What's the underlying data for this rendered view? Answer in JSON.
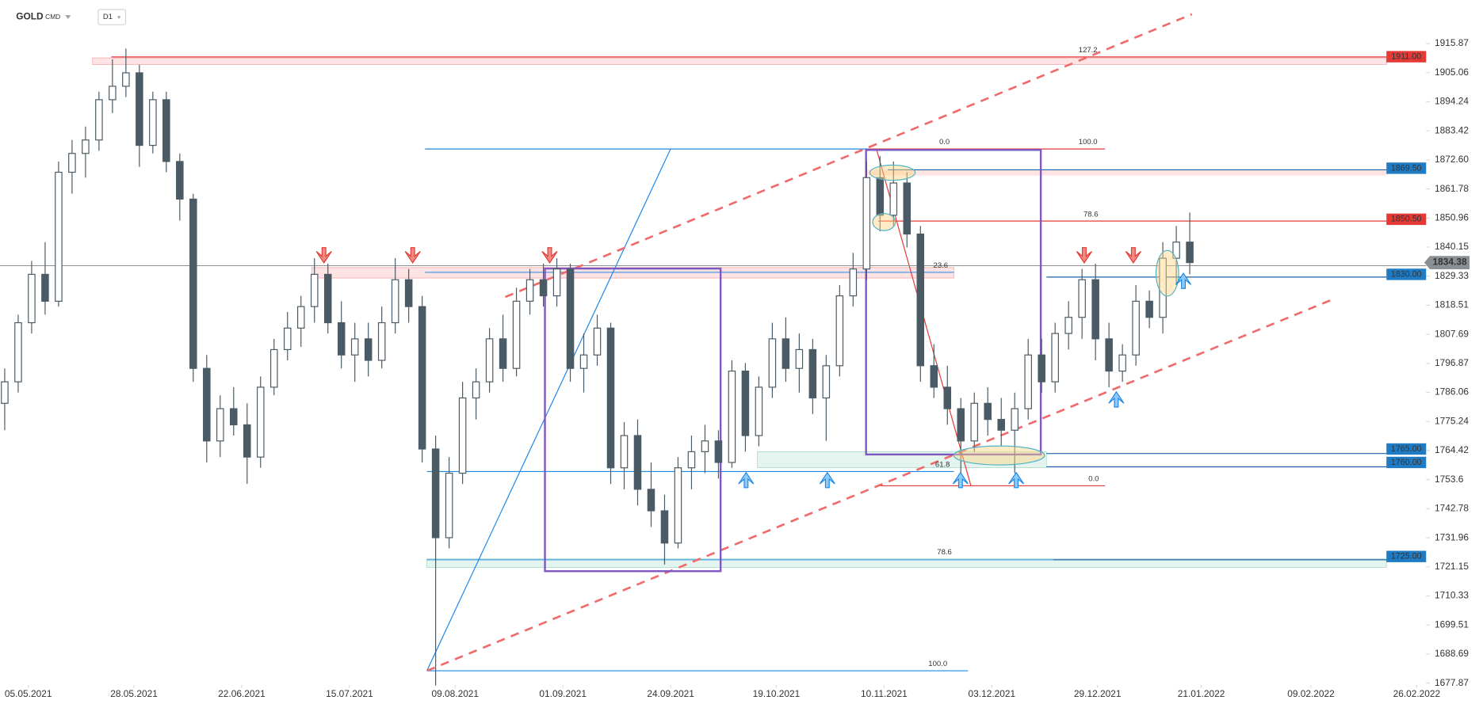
{
  "header": {
    "symbol": "GOLD",
    "market": "CMD",
    "interval": "D1"
  },
  "chart_data": {
    "type": "candlestick",
    "x": [
      0,
      2,
      4,
      6,
      8,
      10,
      12,
      14,
      16,
      18,
      20,
      22,
      24,
      26,
      28,
      30,
      32,
      34,
      36,
      38,
      40,
      42,
      44,
      46,
      48,
      50,
      52,
      54,
      56,
      58,
      60,
      62,
      64,
      66,
      68,
      70,
      72,
      74,
      76,
      78,
      80,
      82,
      84,
      86,
      88,
      90,
      92,
      94,
      96,
      98,
      100,
      102,
      104,
      106,
      108,
      110,
      112,
      114,
      116,
      118,
      120,
      122,
      124,
      126,
      128,
      130,
      132,
      134,
      136,
      138,
      140,
      142,
      144,
      146,
      148,
      150,
      152,
      154,
      156,
      158,
      160,
      162,
      164,
      166,
      168,
      170,
      172,
      174,
      176
    ],
    "open": [
      1782,
      1790,
      1812,
      1830,
      1820,
      1868,
      1875,
      1880,
      1895,
      1900,
      1905,
      1878,
      1895,
      1872,
      1858,
      1795,
      1768,
      1780,
      1774,
      1762,
      1788,
      1802,
      1810,
      1818,
      1830,
      1812,
      1800,
      1806,
      1798,
      1812,
      1828,
      1818,
      1765,
      1732,
      1756,
      1784,
      1790,
      1806,
      1795,
      1820,
      1828,
      1822,
      1832,
      1795,
      1800,
      1810,
      1758,
      1770,
      1750,
      1742,
      1730,
      1758,
      1764,
      1768,
      1760,
      1794,
      1770,
      1788,
      1806,
      1795,
      1802,
      1784,
      1796,
      1822,
      1832,
      1866,
      1852,
      1864,
      1845,
      1796,
      1788,
      1780,
      1768,
      1782,
      1776,
      1772,
      1780,
      1800,
      1790,
      1808,
      1814,
      1828,
      1806,
      1794,
      1800,
      1820,
      1814,
      1836,
      1842
    ],
    "high": [
      1795,
      1815,
      1835,
      1842,
      1872,
      1880,
      1885,
      1898,
      1910,
      1914,
      1908,
      1898,
      1898,
      1875,
      1860,
      1800,
      1785,
      1788,
      1782,
      1792,
      1806,
      1816,
      1822,
      1836,
      1834,
      1820,
      1812,
      1812,
      1818,
      1836,
      1832,
      1822,
      1770,
      1762,
      1790,
      1795,
      1810,
      1815,
      1825,
      1832,
      1834,
      1836,
      1834,
      1808,
      1815,
      1812,
      1775,
      1776,
      1760,
      1748,
      1762,
      1770,
      1774,
      1772,
      1798,
      1797,
      1792,
      1812,
      1814,
      1808,
      1806,
      1800,
      1826,
      1838,
      1872,
      1874,
      1872,
      1868,
      1848,
      1804,
      1796,
      1784,
      1786,
      1788,
      1784,
      1786,
      1806,
      1806,
      1812,
      1820,
      1832,
      1834,
      1812,
      1804,
      1826,
      1824,
      1842,
      1848,
      1853
    ],
    "low": [
      1772,
      1786,
      1808,
      1815,
      1818,
      1860,
      1866,
      1876,
      1890,
      1896,
      1870,
      1875,
      1868,
      1850,
      1790,
      1760,
      1762,
      1770,
      1752,
      1758,
      1785,
      1798,
      1803,
      1812,
      1808,
      1795,
      1790,
      1792,
      1795,
      1808,
      1812,
      1760,
      1677,
      1728,
      1752,
      1776,
      1786,
      1790,
      1792,
      1815,
      1818,
      1818,
      1790,
      1786,
      1796,
      1752,
      1750,
      1744,
      1736,
      1722,
      1728,
      1750,
      1756,
      1754,
      1758,
      1764,
      1766,
      1784,
      1790,
      1786,
      1778,
      1768,
      1792,
      1818,
      1828,
      1846,
      1848,
      1840,
      1790,
      1784,
      1774,
      1756,
      1764,
      1770,
      1766,
      1756,
      1776,
      1786,
      1786,
      1802,
      1806,
      1798,
      1788,
      1790,
      1796,
      1810,
      1808,
      1826,
      1830
    ],
    "close": [
      1790,
      1812,
      1830,
      1820,
      1868,
      1875,
      1880,
      1895,
      1900,
      1905,
      1878,
      1895,
      1872,
      1858,
      1795,
      1768,
      1780,
      1774,
      1762,
      1788,
      1802,
      1810,
      1818,
      1830,
      1812,
      1800,
      1806,
      1798,
      1812,
      1828,
      1818,
      1765,
      1732,
      1756,
      1784,
      1790,
      1806,
      1795,
      1820,
      1828,
      1822,
      1832,
      1795,
      1800,
      1810,
      1758,
      1770,
      1750,
      1742,
      1730,
      1758,
      1764,
      1768,
      1760,
      1794,
      1770,
      1788,
      1806,
      1795,
      1802,
      1784,
      1796,
      1822,
      1832,
      1866,
      1852,
      1864,
      1845,
      1796,
      1788,
      1780,
      1768,
      1782,
      1776,
      1772,
      1780,
      1800,
      1790,
      1808,
      1814,
      1828,
      1806,
      1794,
      1800,
      1820,
      1814,
      1836,
      1842,
      1834.38
    ],
    "up_color": "#ffffff",
    "down_color": "#4b5b65",
    "xlim": [
      -0.7,
      211.1
    ],
    "xticks": [
      {
        "value": 3.5,
        "label": "05.05.2021"
      },
      {
        "value": 19.2,
        "label": "28.05.2021"
      },
      {
        "value": 35.2,
        "label": "22.06.2021"
      },
      {
        "value": 51.2,
        "label": "15.07.2021"
      },
      {
        "value": 66.9,
        "label": "09.08.2021"
      },
      {
        "value": 82.9,
        "label": "01.09.2021"
      },
      {
        "value": 98.9,
        "label": "24.09.2021"
      },
      {
        "value": 114.6,
        "label": "19.10.2021"
      },
      {
        "value": 130.6,
        "label": "10.11.2021"
      },
      {
        "value": 146.6,
        "label": "03.12.2021"
      },
      {
        "value": 162.3,
        "label": "29.12.2021"
      },
      {
        "value": 177.7,
        "label": "21.01.2022"
      },
      {
        "value": 194,
        "label": "09.02.2022"
      },
      {
        "value": 209.7,
        "label": "26.02.2022"
      }
    ],
    "ylim": [
      1670.1,
      1932.1
    ],
    "yticks": [
      1915.87,
      1905.06,
      1894.24,
      1883.42,
      {
        "value": 1872.6,
        "label": "1872.60"
      },
      1861.78,
      1850.96,
      1840.15,
      1829.33,
      1818.51,
      1807.69,
      1796.87,
      1786.06,
      1775.24,
      1764.42,
      1753.6,
      1742.78,
      1731.96,
      1721.15,
      1710.33,
      1699.51,
      1688.69,
      1677.87
    ],
    "grid": false,
    "levels": [
      {
        "value": 1911,
        "label": "1911.00",
        "color": "#e53935"
      },
      {
        "value": 1869.5,
        "label": "1869.50",
        "color": "#1e7bc4"
      },
      {
        "value": 1850.5,
        "label": "1850.50",
        "color": "#e53935"
      },
      {
        "value": 1830,
        "label": "1830.00",
        "color": "#1e7bc4"
      },
      {
        "value": 1765,
        "label": "1765.00",
        "color": "#1e7bc4"
      },
      {
        "value": 1760,
        "label": "1760.00",
        "color": "#1e7bc4"
      },
      {
        "value": 1725,
        "label": "1725.00",
        "color": "#1e7bc4"
      }
    ],
    "last_price": {
      "value": 1834.38,
      "label": "1834.38",
      "color": "#8a8f94"
    },
    "annotations": [
      "127.2",
      "100.0",
      "0.0",
      "78.6",
      "23.6",
      "61.8",
      "0.0",
      "78.6",
      "100.0"
    ]
  }
}
